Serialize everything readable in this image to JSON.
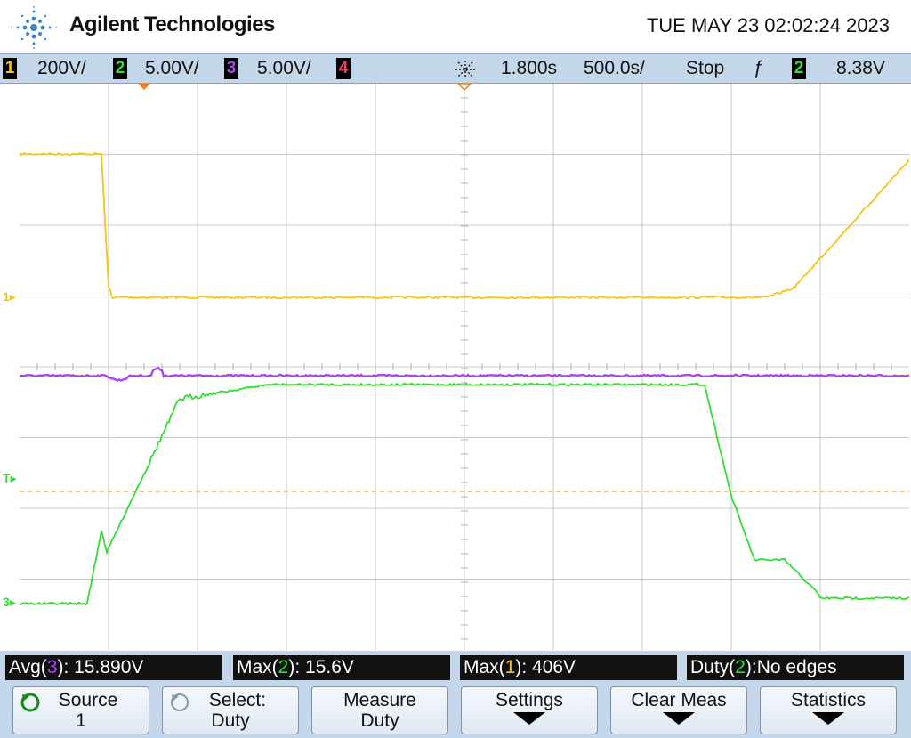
{
  "header": {
    "brand": "Agilent Technologies",
    "datetime": "TUE MAY 23 02:02:24 2023"
  },
  "status": {
    "ch1": {
      "num": "1",
      "scale": "200V/",
      "color": "#f5c518"
    },
    "ch2": {
      "num": "2",
      "scale": "5.00V/",
      "color": "#33dd33"
    },
    "ch3": {
      "num": "3",
      "scale": "5.00V/",
      "color": "#aa44ee"
    },
    "ch4": {
      "num": "4",
      "color": "#ff3366"
    },
    "delay": "1.800s",
    "timebase": "500.0s/",
    "run_state": "Stop",
    "trigger_slope": "ƒ",
    "trigger_source": "2",
    "trigger_level": "8.38V"
  },
  "markers": {
    "ch1_ground": "1",
    "trigger": "T",
    "ch3_ground": "3"
  },
  "measurements": [
    {
      "label_pre": "Avg(",
      "ch": "3",
      "label_post": "): 15.890V",
      "ch_color": "#aa44ee"
    },
    {
      "label_pre": "Max(",
      "ch": "2",
      "label_post": "): 15.6V",
      "ch_color": "#33dd33"
    },
    {
      "label_pre": "Max(",
      "ch": "1",
      "label_post": "): 406V",
      "ch_color": "#f5c518"
    },
    {
      "label_pre": "Duty(",
      "ch": "2",
      "label_post": "):No edges",
      "ch_color": "#33dd33"
    }
  ],
  "softkeys": {
    "source": {
      "line1": "Source",
      "line2": "1"
    },
    "select": {
      "line1": "Select:",
      "line2": "Duty"
    },
    "measure": {
      "line1": "Measure",
      "line2": "Duty"
    },
    "settings": {
      "line1": "Settings"
    },
    "clear": {
      "line1": "Clear Meas"
    },
    "statistics": {
      "line1": "Statistics"
    }
  },
  "colors": {
    "ch1": "#f5c518",
    "ch2": "#33dd33",
    "ch3": "#aa44ee",
    "trigger_line": "#f0a020"
  }
}
